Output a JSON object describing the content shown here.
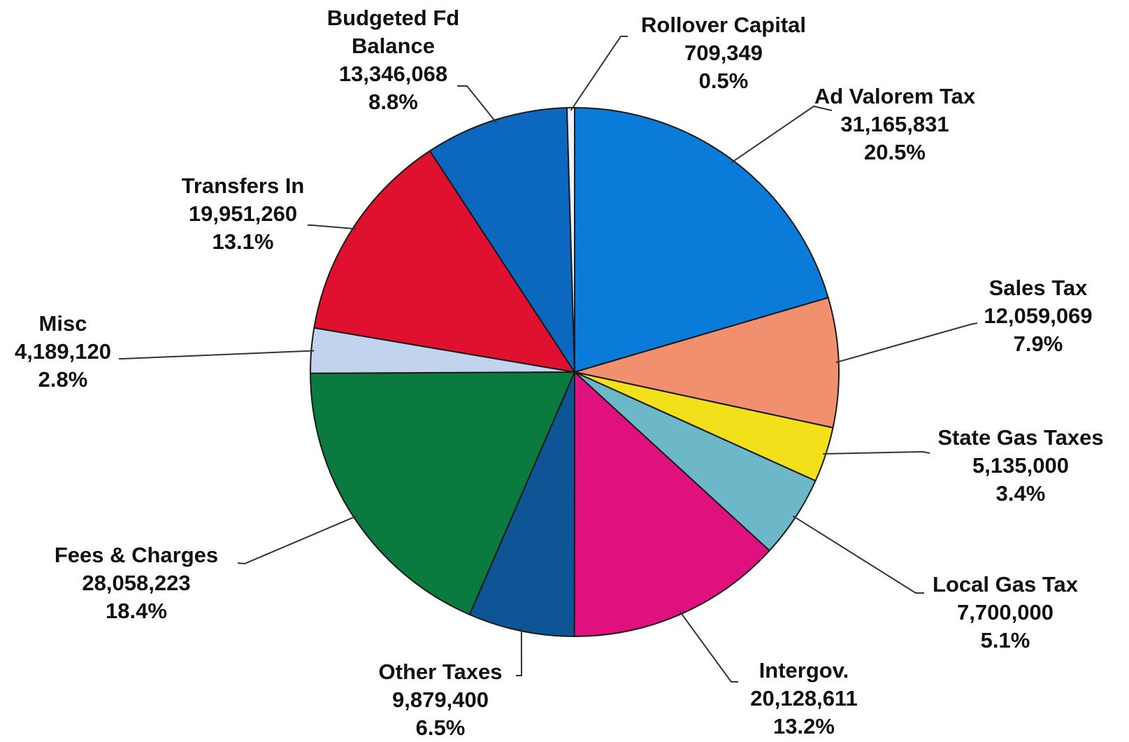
{
  "chart_data": {
    "type": "pie",
    "title": "",
    "slices": [
      {
        "label": "Ad Valorem Tax",
        "value": 31165831,
        "value_text": "31,165,831",
        "percent": "20.5%",
        "color": "#0A7BD8"
      },
      {
        "label": "Sales Tax",
        "value": 12059069,
        "value_text": "12,059,069",
        "percent": "7.9%",
        "color": "#F0906E"
      },
      {
        "label": "State Gas Taxes",
        "value": 5135000,
        "value_text": "5,135,000",
        "percent": "3.4%",
        "color": "#F2E01A"
      },
      {
        "label": "Local Gas Tax",
        "value": 7700000,
        "value_text": "7,700,000",
        "percent": "5.1%",
        "color": "#6CB8C9"
      },
      {
        "label": "Intergov.",
        "value": 20128611,
        "value_text": "20,128,611",
        "percent": "13.2%",
        "color": "#E0107F"
      },
      {
        "label": "Other Taxes",
        "value": 9879400,
        "value_text": "9,879,400",
        "percent": "6.5%",
        "color": "#0D5594"
      },
      {
        "label": "Fees & Charges",
        "value": 28058223,
        "value_text": "28,058,223",
        "percent": "18.4%",
        "color": "#0A7A3E"
      },
      {
        "label": "Misc",
        "value": 4189120,
        "value_text": "4,189,120",
        "percent": "2.8%",
        "color": "#C2D3EE"
      },
      {
        "label": "Transfers In",
        "value": 19951260,
        "value_text": "19,951,260",
        "percent": "13.1%",
        "color": "#E0102F"
      },
      {
        "label": "Budgeted Fd Balance",
        "label_lines": [
          "Budgeted Fd",
          "Balance"
        ],
        "value": 13346068,
        "value_text": "13,346,068",
        "percent": "8.8%",
        "color": "#0C67BF"
      },
      {
        "label": "Rollover Capital",
        "value": 709349,
        "value_text": "709,349",
        "percent": "0.5%",
        "color": "#EEF2F8"
      }
    ]
  }
}
